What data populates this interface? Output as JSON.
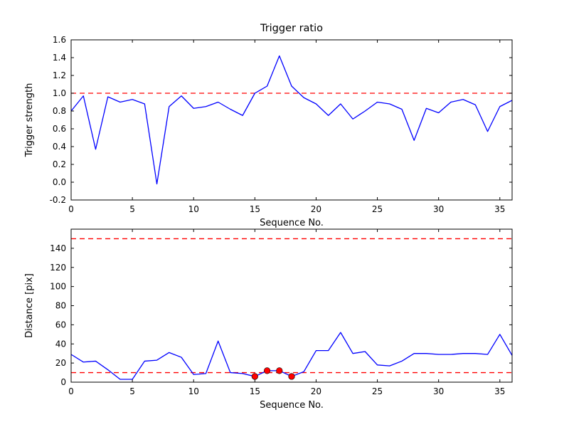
{
  "figure": {
    "background": "#ffffff",
    "line_color": "#0000ff",
    "threshold_color": "#ff0000",
    "marker_color": "#ff0000"
  },
  "chart_data": [
    {
      "type": "line",
      "title": "Trigger ratio",
      "xlabel": "Sequence No.",
      "ylabel": "Trigger strength",
      "xlim": [
        0,
        36
      ],
      "ylim": [
        -0.2,
        1.6
      ],
      "grid": false,
      "legend": "none",
      "xticks": [
        0,
        5,
        10,
        15,
        20,
        25,
        30,
        35
      ],
      "xtick_labels": [
        "0",
        "5",
        "10",
        "15",
        "20",
        "25",
        "30",
        "35"
      ],
      "yticks": [
        -0.2,
        0.0,
        0.2,
        0.4,
        0.6,
        0.8,
        1.0,
        1.2,
        1.4,
        1.6
      ],
      "ytick_labels": [
        "-0.2",
        "0.0",
        "0.2",
        "0.4",
        "0.6",
        "0.8",
        "1.0",
        "1.2",
        "1.4",
        "1.6"
      ],
      "hlines": [
        {
          "y": 1.0,
          "color": "#ff0000",
          "style": "dashed"
        }
      ],
      "series": [
        {
          "name": "trigger-strength",
          "color": "#0000ff",
          "x": [
            0,
            1,
            2,
            3,
            4,
            5,
            6,
            7,
            8,
            9,
            10,
            11,
            12,
            13,
            14,
            15,
            16,
            17,
            18,
            19,
            20,
            21,
            22,
            23,
            24,
            25,
            26,
            27,
            28,
            29,
            30,
            31,
            32,
            33,
            34,
            35,
            36
          ],
          "y": [
            0.8,
            0.97,
            0.37,
            0.96,
            0.9,
            0.93,
            0.88,
            -0.02,
            0.85,
            0.97,
            0.83,
            0.85,
            0.9,
            0.82,
            0.75,
            1.0,
            1.08,
            1.42,
            1.08,
            0.95,
            0.88,
            0.75,
            0.88,
            0.71,
            0.8,
            0.9,
            0.88,
            0.82,
            0.47,
            0.83,
            0.78,
            0.9,
            0.93,
            0.87,
            0.57,
            0.85,
            0.92
          ]
        }
      ],
      "points": [],
      "point_color": "#ff0000"
    },
    {
      "type": "line",
      "title": "",
      "xlabel": "Sequence No.",
      "ylabel": "Distance [pix]",
      "xlim": [
        0,
        36
      ],
      "ylim": [
        0,
        160
      ],
      "grid": false,
      "legend": "none",
      "xticks": [
        0,
        5,
        10,
        15,
        20,
        25,
        30,
        35
      ],
      "xtick_labels": [
        "0",
        "5",
        "10",
        "15",
        "20",
        "25",
        "30",
        "35"
      ],
      "yticks": [
        0,
        20,
        40,
        60,
        80,
        100,
        120,
        140
      ],
      "ytick_labels": [
        "0",
        "20",
        "40",
        "60",
        "80",
        "100",
        "120",
        "140"
      ],
      "hlines": [
        {
          "y": 150,
          "color": "#ff0000",
          "style": "dashed"
        },
        {
          "y": 10,
          "color": "#ff0000",
          "style": "dashed"
        }
      ],
      "series": [
        {
          "name": "distance",
          "color": "#0000ff",
          "x": [
            0,
            1,
            2,
            3,
            4,
            5,
            6,
            7,
            8,
            9,
            10,
            11,
            12,
            13,
            14,
            15,
            16,
            17,
            18,
            19,
            20,
            21,
            22,
            23,
            24,
            25,
            26,
            27,
            28,
            29,
            30,
            31,
            32,
            33,
            34,
            35,
            36
          ],
          "y": [
            29,
            21,
            22,
            13,
            3,
            3,
            22,
            23,
            31,
            26,
            8,
            9,
            43,
            10,
            9,
            6,
            12,
            12,
            6,
            11,
            33,
            33,
            52,
            30,
            32,
            18,
            17,
            22,
            30,
            30,
            29,
            29,
            30,
            30,
            29,
            50,
            28
          ]
        }
      ],
      "points": [
        {
          "x": 15,
          "y": 6
        },
        {
          "x": 16,
          "y": 12
        },
        {
          "x": 17,
          "y": 12
        },
        {
          "x": 18,
          "y": 6
        }
      ],
      "point_color": "#ff0000"
    }
  ]
}
